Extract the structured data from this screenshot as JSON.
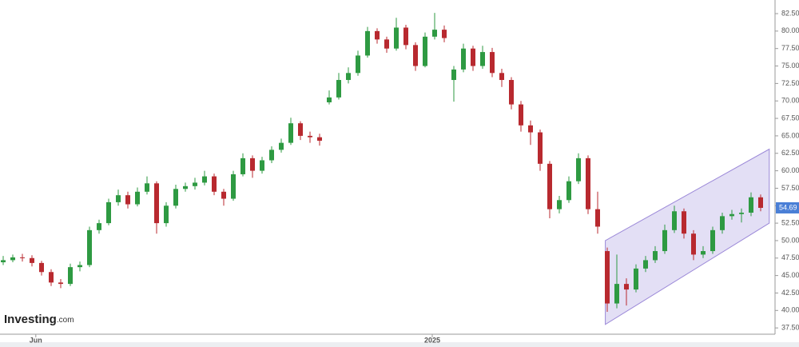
{
  "chart_data": {
    "type": "candlestick",
    "logo": {
      "name": "Investing",
      "suffix": ".com"
    },
    "open": [
      46.9,
      47.2,
      47.6,
      47.5,
      46.8,
      45.5,
      44.0,
      43.8,
      46.2,
      46.5,
      51.5,
      52.5,
      55.5,
      56.5,
      55.2,
      57.0,
      58.2,
      52.5,
      55.0,
      57.4,
      57.8,
      58.3,
      59.2,
      57.0,
      56.0,
      59.5,
      61.8,
      60.0,
      61.5,
      63.0,
      64.0,
      66.8,
      65.0,
      64.8,
      69.8,
      70.5,
      73.0,
      74.0,
      76.5,
      80.0,
      78.8,
      77.5,
      80.5,
      78.0,
      75.0,
      79.2,
      80.2,
      73.0,
      74.5,
      77.5,
      75.0,
      77.0,
      74.0,
      73.0,
      69.5,
      66.5,
      65.5,
      61.0,
      54.5,
      55.8,
      58.5,
      61.8,
      54.5,
      48.5,
      41.0,
      43.8,
      43.0,
      46.0,
      47.2,
      48.5,
      51.5,
      54.2,
      51.0,
      48.0,
      48.5,
      51.5,
      53.5,
      53.8,
      54.0,
      56.2
    ],
    "high": [
      47.8,
      48.0,
      48.1,
      47.9,
      47.1,
      45.9,
      44.5,
      46.7,
      47.0,
      52.0,
      53.0,
      56.0,
      57.3,
      57.0,
      57.6,
      59.2,
      58.5,
      55.5,
      58.0,
      58.3,
      59.0,
      60.0,
      59.6,
      57.4,
      60.0,
      62.5,
      62.2,
      62.0,
      63.5,
      64.6,
      67.6,
      67.1,
      65.6,
      65.3,
      71.5,
      74.0,
      74.8,
      77.2,
      80.6,
      80.4,
      79.2,
      81.9,
      80.9,
      78.4,
      79.8,
      82.6,
      80.8,
      75.0,
      78.2,
      77.9,
      77.9,
      77.6,
      74.6,
      73.4,
      70.0,
      67.2,
      65.9,
      61.4,
      56.4,
      59.2,
      62.5,
      62.2,
      57.0,
      49.0,
      48.0,
      44.6,
      46.6,
      47.8,
      49.2,
      52.3,
      55.0,
      54.6,
      51.5,
      49.2,
      52.0,
      54.0,
      54.4,
      54.6,
      56.9,
      56.6
    ],
    "low": [
      46.5,
      46.9,
      47.0,
      46.3,
      45.0,
      43.5,
      43.2,
      43.5,
      45.6,
      46.2,
      51.0,
      52.2,
      55.0,
      54.6,
      54.9,
      56.6,
      51.0,
      52.0,
      54.6,
      57.0,
      57.3,
      57.9,
      56.5,
      55.0,
      55.7,
      59.2,
      59.0,
      59.6,
      61.1,
      62.6,
      63.7,
      64.4,
      64.0,
      63.6,
      69.5,
      70.2,
      72.5,
      73.6,
      76.2,
      78.2,
      76.9,
      77.2,
      77.4,
      74.3,
      74.8,
      78.8,
      78.4,
      69.9,
      74.1,
      74.3,
      74.6,
      73.4,
      72.0,
      68.8,
      65.6,
      63.7,
      60.0,
      53.2,
      53.9,
      55.4,
      58.1,
      53.8,
      51.0,
      39.8,
      40.3,
      40.7,
      42.6,
      45.5,
      46.8,
      48.1,
      51.1,
      50.3,
      47.2,
      47.5,
      48.1,
      51.0,
      53.0,
      52.6,
      53.5,
      54.2
    ],
    "close": [
      47.2,
      47.6,
      47.5,
      46.8,
      45.5,
      44.0,
      43.8,
      46.2,
      46.5,
      51.5,
      52.5,
      55.5,
      56.5,
      55.2,
      57.0,
      58.2,
      52.5,
      55.0,
      57.4,
      57.8,
      58.3,
      59.2,
      57.0,
      56.0,
      59.5,
      61.8,
      60.0,
      61.5,
      63.0,
      64.0,
      66.8,
      65.0,
      64.8,
      64.3,
      70.5,
      73.0,
      74.0,
      76.5,
      80.0,
      78.8,
      77.5,
      80.5,
      78.0,
      75.0,
      79.2,
      80.2,
      79.0,
      74.5,
      77.5,
      75.0,
      77.0,
      74.0,
      73.0,
      69.5,
      66.5,
      65.5,
      61.0,
      54.5,
      55.8,
      58.5,
      61.8,
      54.5,
      52.0,
      41.0,
      43.8,
      43.0,
      46.0,
      47.2,
      48.5,
      51.5,
      54.2,
      51.0,
      48.0,
      48.5,
      51.5,
      53.5,
      53.8,
      54.0,
      56.2,
      54.69
    ],
    "up_color": "#2e9a42",
    "down_color": "#b8292f",
    "channel": {
      "x": [
        62.8,
        79.9
      ],
      "upper": [
        50.0,
        63.1
      ],
      "lower": [
        38.0,
        52.5
      ],
      "fill": "#dcd7f3",
      "stroke": "#9b88d8"
    },
    "last_price": {
      "value": 54.69,
      "label": "54.69",
      "color": "#4a7fd6"
    },
    "ylim": [
      36.6,
      84.45
    ],
    "yticks": [
      {
        "value": 37.5,
        "label": "37.50"
      },
      {
        "value": 40,
        "label": "40.00"
      },
      {
        "value": 42.5,
        "label": "42.50"
      },
      {
        "value": 45,
        "label": "45.00"
      },
      {
        "value": 47.5,
        "label": "47.50"
      },
      {
        "value": 50,
        "label": "50.00"
      },
      {
        "value": 52.5,
        "label": "52.50"
      },
      {
        "value": 55,
        "label": "55.00"
      },
      {
        "value": 57.5,
        "label": "57.50"
      },
      {
        "value": 60,
        "label": "60.00"
      },
      {
        "value": 62.5,
        "label": "62.50"
      },
      {
        "value": 65,
        "label": "65.00"
      },
      {
        "value": 67.5,
        "label": "67.50"
      },
      {
        "value": 70,
        "label": "70.00"
      },
      {
        "value": 72.5,
        "label": "72.50"
      },
      {
        "value": 75,
        "label": "75.00"
      },
      {
        "value": 77.5,
        "label": "77.50"
      },
      {
        "value": 80,
        "label": "80.00"
      },
      {
        "value": 82.5,
        "label": "82.50"
      }
    ],
    "xticks": [
      {
        "value": 3.4,
        "label": "Jun"
      },
      {
        "value": 44.75,
        "label": "2025"
      }
    ]
  }
}
